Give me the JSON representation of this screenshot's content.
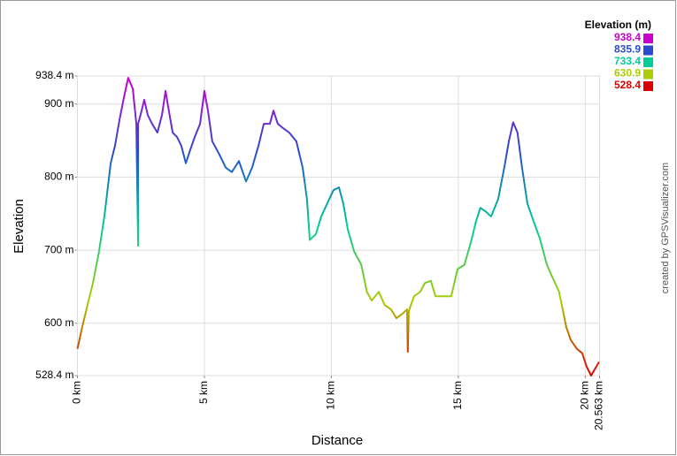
{
  "chart_data": {
    "type": "line",
    "xlabel": "Distance",
    "ylabel": "Elevation",
    "credit": "created by GPSVisualizer.com",
    "x": [
      0,
      0.19,
      0.44,
      0.61,
      0.85,
      1.06,
      1.31,
      1.48,
      1.66,
      1.83,
      2.0,
      2.18,
      2.32,
      2.35,
      2.39,
      2.39,
      2.53,
      2.63,
      2.77,
      2.94,
      3.15,
      3.33,
      3.47,
      3.57,
      3.75,
      3.92,
      4.09,
      4.27,
      4.44,
      4.62,
      4.83,
      5.0,
      5.14,
      5.31,
      5.59,
      5.84,
      6.08,
      6.36,
      6.64,
      6.88,
      7.13,
      7.34,
      7.58,
      7.72,
      7.89,
      8.1,
      8.34,
      8.62,
      8.87,
      9.04,
      9.15,
      9.39,
      9.6,
      9.84,
      10.08,
      10.3,
      10.47,
      10.65,
      10.9,
      11.18,
      11.4,
      11.59,
      11.87,
      12.1,
      12.35,
      12.56,
      12.8,
      12.98,
      13.01,
      13.05,
      13.26,
      13.5,
      13.68,
      13.92,
      14.1,
      14.37,
      14.72,
      14.97,
      15.24,
      15.49,
      15.7,
      15.87,
      16.11,
      16.29,
      16.57,
      16.81,
      16.99,
      17.16,
      17.33,
      17.51,
      17.72,
      17.96,
      18.21,
      18.49,
      18.73,
      18.97,
      19.25,
      19.43,
      19.67,
      19.88,
      20.05,
      20.23,
      20.54
    ],
    "values": [
      565,
      595,
      631,
      655,
      698,
      746,
      819,
      843,
      879,
      909,
      936,
      921,
      873,
      800,
      706,
      873,
      891,
      906,
      885,
      873,
      861,
      885,
      918,
      897,
      861,
      855,
      843,
      819,
      837,
      855,
      873,
      918,
      891,
      849,
      831,
      813,
      807,
      822,
      794,
      813,
      843,
      873,
      873,
      891,
      873,
      867,
      861,
      849,
      813,
      770,
      714,
      722,
      746,
      764,
      782,
      786,
      764,
      728,
      698,
      680,
      643,
      631,
      643,
      625,
      619,
      607,
      613,
      619,
      561,
      617,
      637,
      643,
      655,
      658,
      637,
      637,
      637,
      674,
      680,
      710,
      740,
      758,
      752,
      746,
      770,
      813,
      849,
      875,
      861,
      813,
      764,
      740,
      716,
      680,
      661,
      643,
      595,
      577,
      565,
      559,
      541,
      528.4,
      547
    ],
    "xlim": [
      0,
      20.563
    ],
    "xticks": [
      {
        "value": 0,
        "label": "0 km"
      },
      {
        "value": 5,
        "label": "5 km"
      },
      {
        "value": 10,
        "label": "10 km"
      },
      {
        "value": 15,
        "label": "15 km"
      },
      {
        "value": 20,
        "label": "20 km"
      },
      {
        "value": 20.563,
        "label": "20.563 km"
      }
    ],
    "ylim": [
      528.4,
      938.4
    ],
    "yticks": [
      {
        "value": 528.4,
        "label": "528.4 m"
      },
      {
        "value": 600,
        "label": "600 m"
      },
      {
        "value": 700,
        "label": "700 m"
      },
      {
        "value": 800,
        "label": "800 m"
      },
      {
        "value": 900,
        "label": "900 m"
      },
      {
        "value": 938.4,
        "label": "938.4 m"
      }
    ],
    "grid": true,
    "legend": {
      "title": "Elevation (m)",
      "stops": [
        {
          "value": 938.4,
          "color": "#cc00cc"
        },
        {
          "value": 835.9,
          "color": "#2a4ccc"
        },
        {
          "value": 733.4,
          "color": "#00cc99"
        },
        {
          "value": 630.9,
          "color": "#aacc00"
        },
        {
          "value": 528.4,
          "color": "#dd0000"
        }
      ]
    }
  }
}
